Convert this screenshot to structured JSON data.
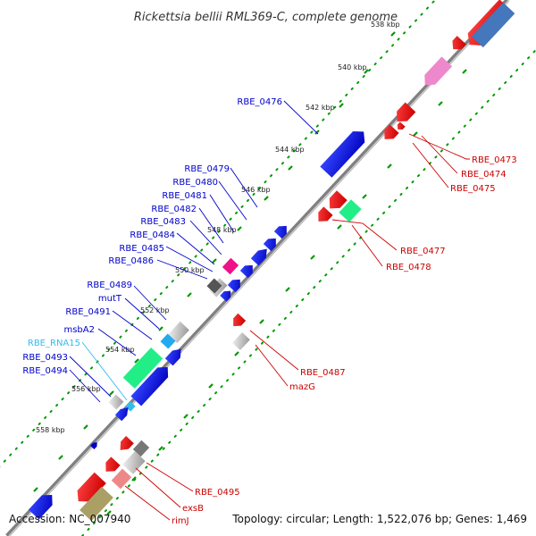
{
  "map": {
    "title": "Rickettsia bellii RML369-C, complete genome",
    "accession_text": "Accession: NC_007940",
    "summary_text": "Topology: circular; Length: 1,522,076 bp; Genes: 1,469"
  },
  "ticks": [
    "538 kbp",
    "540 kbp",
    "542 kbp",
    "544 kbp",
    "546 kbp",
    "548 kbp",
    "550 kbp",
    "552 kbp",
    "554 kbp",
    "556 kbp",
    "558 kbp"
  ],
  "labels_left": [
    {
      "text": "RBE_0476",
      "color": "#0000cc"
    },
    {
      "text": "RBE_0479",
      "color": "#0000cc"
    },
    {
      "text": "RBE_0480",
      "color": "#0000cc"
    },
    {
      "text": "RBE_0481",
      "color": "#0000cc"
    },
    {
      "text": "RBE_0482",
      "color": "#0000cc"
    },
    {
      "text": "RBE_0483",
      "color": "#0000cc"
    },
    {
      "text": "RBE_0484",
      "color": "#0000cc"
    },
    {
      "text": "RBE_0485",
      "color": "#0000cc"
    },
    {
      "text": "RBE_0486",
      "color": "#0000cc"
    },
    {
      "text": "RBE_0489",
      "color": "#0000cc"
    },
    {
      "text": "mutT",
      "color": "#0000cc"
    },
    {
      "text": "RBE_0491",
      "color": "#0000cc"
    },
    {
      "text": "msbA2",
      "color": "#0000cc"
    },
    {
      "text": "RBE_RNA15",
      "color": "#33bbee"
    },
    {
      "text": "RBE_0493",
      "color": "#0000cc"
    },
    {
      "text": "RBE_0494",
      "color": "#0000cc"
    }
  ],
  "labels_right": [
    {
      "text": "RBE_0473",
      "color": "#cc0000"
    },
    {
      "text": "RBE_0474",
      "color": "#cc0000"
    },
    {
      "text": "RBE_0475",
      "color": "#cc0000"
    },
    {
      "text": "RBE_0477",
      "color": "#cc0000"
    },
    {
      "text": "RBE_0478",
      "color": "#cc0000"
    },
    {
      "text": "RBE_0487",
      "color": "#cc0000"
    },
    {
      "text": "mazG",
      "color": "#cc0000"
    },
    {
      "text": "RBE_0495",
      "color": "#cc0000"
    },
    {
      "text": "exsB",
      "color": "#cc0000"
    },
    {
      "text": "rimJ",
      "color": "#cc0000"
    }
  ],
  "colors": {
    "backbone": "#808080",
    "tick_marks": "#009900",
    "forward_gene": "#0000ee",
    "reverse_gene": "#ee0000",
    "rna_gene": "#33bbee",
    "other_feature_pink": "#ee88cc",
    "other_feature_steel": "#4477bb",
    "other_feature_green": "#22ee88",
    "other_feature_magenta": "#ee1188",
    "other_feature_olive": "#aaa066",
    "other_feature_gray": "#bbbbbb"
  }
}
